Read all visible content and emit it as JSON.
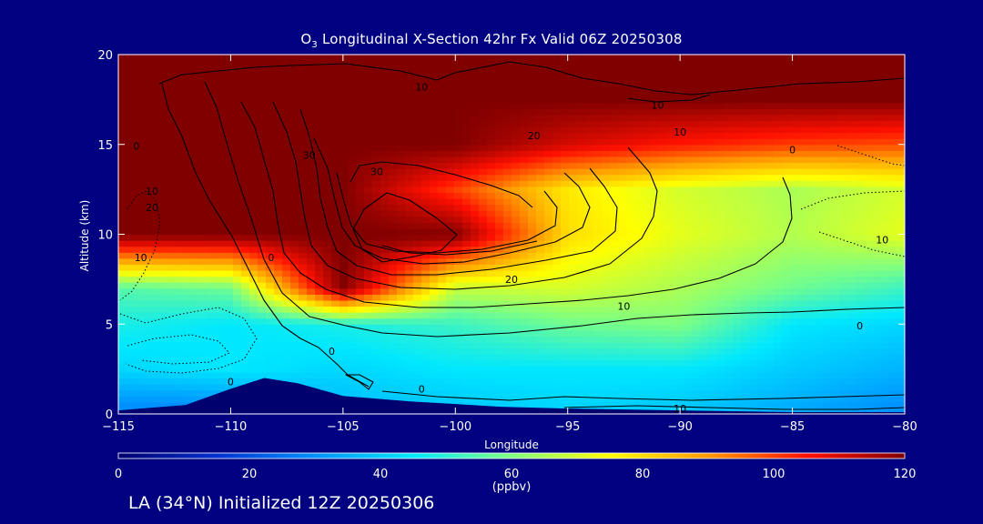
{
  "title": {
    "prefix": "O",
    "subscript": "3",
    "rest": " Longitudinal X-Section 42hr  Fx Valid 06Z 20250308"
  },
  "footer": "LA (34°N) Initialized 12Z 20250306",
  "chart_data": {
    "type": "heatmap",
    "xlabel": "Longitude",
    "ylabel": "Altitude (km)",
    "xlim": [
      -115,
      -80
    ],
    "ylim": [
      0,
      20
    ],
    "x_ticks": [
      -115,
      -110,
      -105,
      -100,
      -95,
      -90,
      -85,
      -80
    ],
    "x_tick_labels": [
      "−115",
      "−110",
      "−105",
      "−100",
      "−95",
      "−90",
      "−85",
      "−80"
    ],
    "y_ticks": [
      0,
      5,
      10,
      15,
      20
    ],
    "y_tick_labels": [
      "0",
      "5",
      "10",
      "15",
      "20"
    ],
    "colorbar": {
      "min": 0,
      "max": 120,
      "ticks": [
        0,
        20,
        40,
        60,
        80,
        100,
        120
      ],
      "label": "(ppbv)",
      "colors": [
        "#00006e",
        "#0030d0",
        "#0090ff",
        "#00e8ff",
        "#80ff80",
        "#ffff00",
        "#ff9800",
        "#ff1000",
        "#800000"
      ]
    },
    "grid_lon": [
      -115,
      -110,
      -105,
      -100,
      -95,
      -90,
      -85,
      -80
    ],
    "grid_alt": [
      0.5,
      2.5,
      5,
      7,
      10,
      12.5,
      15,
      17.5,
      19.8
    ],
    "ozone_ppbv": [
      [
        30,
        30,
        38,
        40,
        42,
        40,
        35,
        30
      ],
      [
        42,
        45,
        42,
        45,
        45,
        45,
        40,
        36
      ],
      [
        48,
        45,
        48,
        52,
        58,
        60,
        45,
        42
      ],
      [
        55,
        58,
        120,
        68,
        70,
        65,
        58,
        52
      ],
      [
        120,
        120,
        120,
        120,
        80,
        72,
        66,
        72
      ],
      [
        120,
        120,
        120,
        100,
        78,
        70,
        65,
        70
      ],
      [
        120,
        120,
        120,
        120,
        110,
        104,
        100,
        98
      ],
      [
        120,
        120,
        120,
        120,
        120,
        120,
        120,
        120
      ],
      [
        120,
        120,
        120,
        120,
        120,
        120,
        120,
        120
      ]
    ],
    "terrain_km": [
      {
        "lon": -115,
        "alt": 0.2
      },
      {
        "lon": -112,
        "alt": 0.5
      },
      {
        "lon": -110,
        "alt": 1.4
      },
      {
        "lon": -108.5,
        "alt": 2.0
      },
      {
        "lon": -107,
        "alt": 1.7
      },
      {
        "lon": -105,
        "alt": 1.0
      },
      {
        "lon": -102,
        "alt": 0.7
      },
      {
        "lon": -98,
        "alt": 0.4
      },
      {
        "lon": -95,
        "alt": 0.3
      },
      {
        "lon": -90,
        "alt": 0.2
      },
      {
        "lon": -85,
        "alt": 0.1
      },
      {
        "lon": -80,
        "alt": 0.1
      }
    ],
    "contour_labels": [
      {
        "text": "10",
        "lon": -101.5,
        "alt": 18
      },
      {
        "text": "10",
        "lon": -91,
        "alt": 17
      },
      {
        "text": "10",
        "lon": -90,
        "alt": 15.5
      },
      {
        "text": "20",
        "lon": -96.5,
        "alt": 15.3
      },
      {
        "text": "0",
        "lon": -114.2,
        "alt": 14.7
      },
      {
        "text": "10",
        "lon": -113.5,
        "alt": 12.2
      },
      {
        "text": "20",
        "lon": -113.5,
        "alt": 11.3
      },
      {
        "text": "30",
        "lon": -106.5,
        "alt": 14.2
      },
      {
        "text": "30",
        "lon": -103.5,
        "alt": 13.3
      },
      {
        "text": "10",
        "lon": -114,
        "alt": 8.5
      },
      {
        "text": "0",
        "lon": -108.2,
        "alt": 8.5
      },
      {
        "text": "20",
        "lon": -97.5,
        "alt": 7.3
      },
      {
        "text": "10",
        "lon": -92.5,
        "alt": 5.8
      },
      {
        "text": "10",
        "lon": -81,
        "alt": 9.5
      },
      {
        "text": "0",
        "lon": -85,
        "alt": 14.5
      },
      {
        "text": "0",
        "lon": -82,
        "alt": 4.7
      },
      {
        "text": "0",
        "lon": -105.5,
        "alt": 3.3
      },
      {
        "text": "0",
        "lon": -110,
        "alt": 1.6
      },
      {
        "text": "0",
        "lon": -101.5,
        "alt": 1.2
      },
      {
        "text": "10",
        "lon": -90,
        "alt": 0.1
      }
    ]
  }
}
